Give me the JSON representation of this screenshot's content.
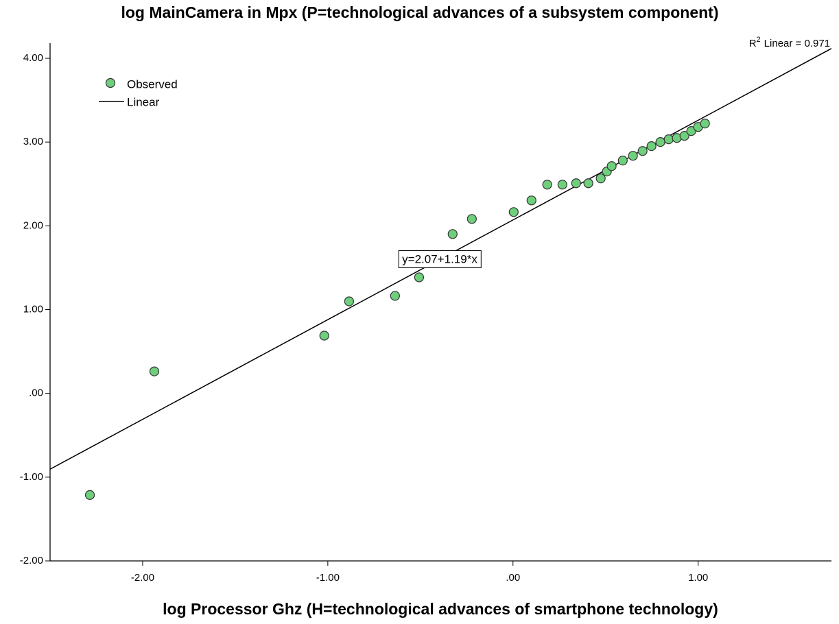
{
  "chart_data": {
    "type": "scatter",
    "title": "log MainCamera in Mpx (P=technological advances of a subsystem component)",
    "x_label": "log Processor Ghz (H=technological advances of smartphone technology)",
    "xlim": [
      -2.5,
      1.72
    ],
    "ylim": [
      -2,
      4.18
    ],
    "xticks": [
      {
        "value": -2,
        "label": "-2.00"
      },
      {
        "value": -1,
        "label": "-1.00"
      },
      {
        "value": 0,
        "label": ".00"
      },
      {
        "value": 1,
        "label": "1.00"
      }
    ],
    "yticks": [
      {
        "value": -2,
        "label": "-2.00"
      },
      {
        "value": -1,
        "label": "-1.00"
      },
      {
        "value": 0,
        "label": ".00"
      },
      {
        "value": 1,
        "label": "1.00"
      },
      {
        "value": 2,
        "label": "2.00"
      },
      {
        "value": 3,
        "label": "3.00"
      },
      {
        "value": 4,
        "label": "4.00"
      }
    ],
    "legend": "upper left",
    "series": [
      {
        "name": "Observed",
        "color": "#6fcf7c",
        "x": [
          -2.285,
          -1.937,
          -1.019,
          -0.885,
          -0.637,
          -0.507,
          -0.326,
          -0.222,
          0.004,
          0.1,
          0.185,
          0.267,
          0.341,
          0.407,
          0.474,
          0.507,
          0.533,
          0.593,
          0.648,
          0.7,
          0.748,
          0.796,
          0.841,
          0.885,
          0.926,
          0.963,
          1.0,
          1.037
        ],
        "values": [
          -1.213,
          0.262,
          0.689,
          1.098,
          1.164,
          1.385,
          1.902,
          2.082,
          2.164,
          2.303,
          2.492,
          2.492,
          2.508,
          2.508,
          2.566,
          2.648,
          2.713,
          2.779,
          2.836,
          2.893,
          2.951,
          3.0,
          3.033,
          3.049,
          3.074,
          3.131,
          3.18,
          3.221
        ]
      }
    ],
    "fit": {
      "name": "Linear",
      "color": "#000000",
      "intercept": 2.07,
      "slope": 1.19,
      "label": "y=2.07+1.19*x"
    },
    "r2_label": [
      "R",
      "2",
      "Linear = 0.971"
    ]
  }
}
